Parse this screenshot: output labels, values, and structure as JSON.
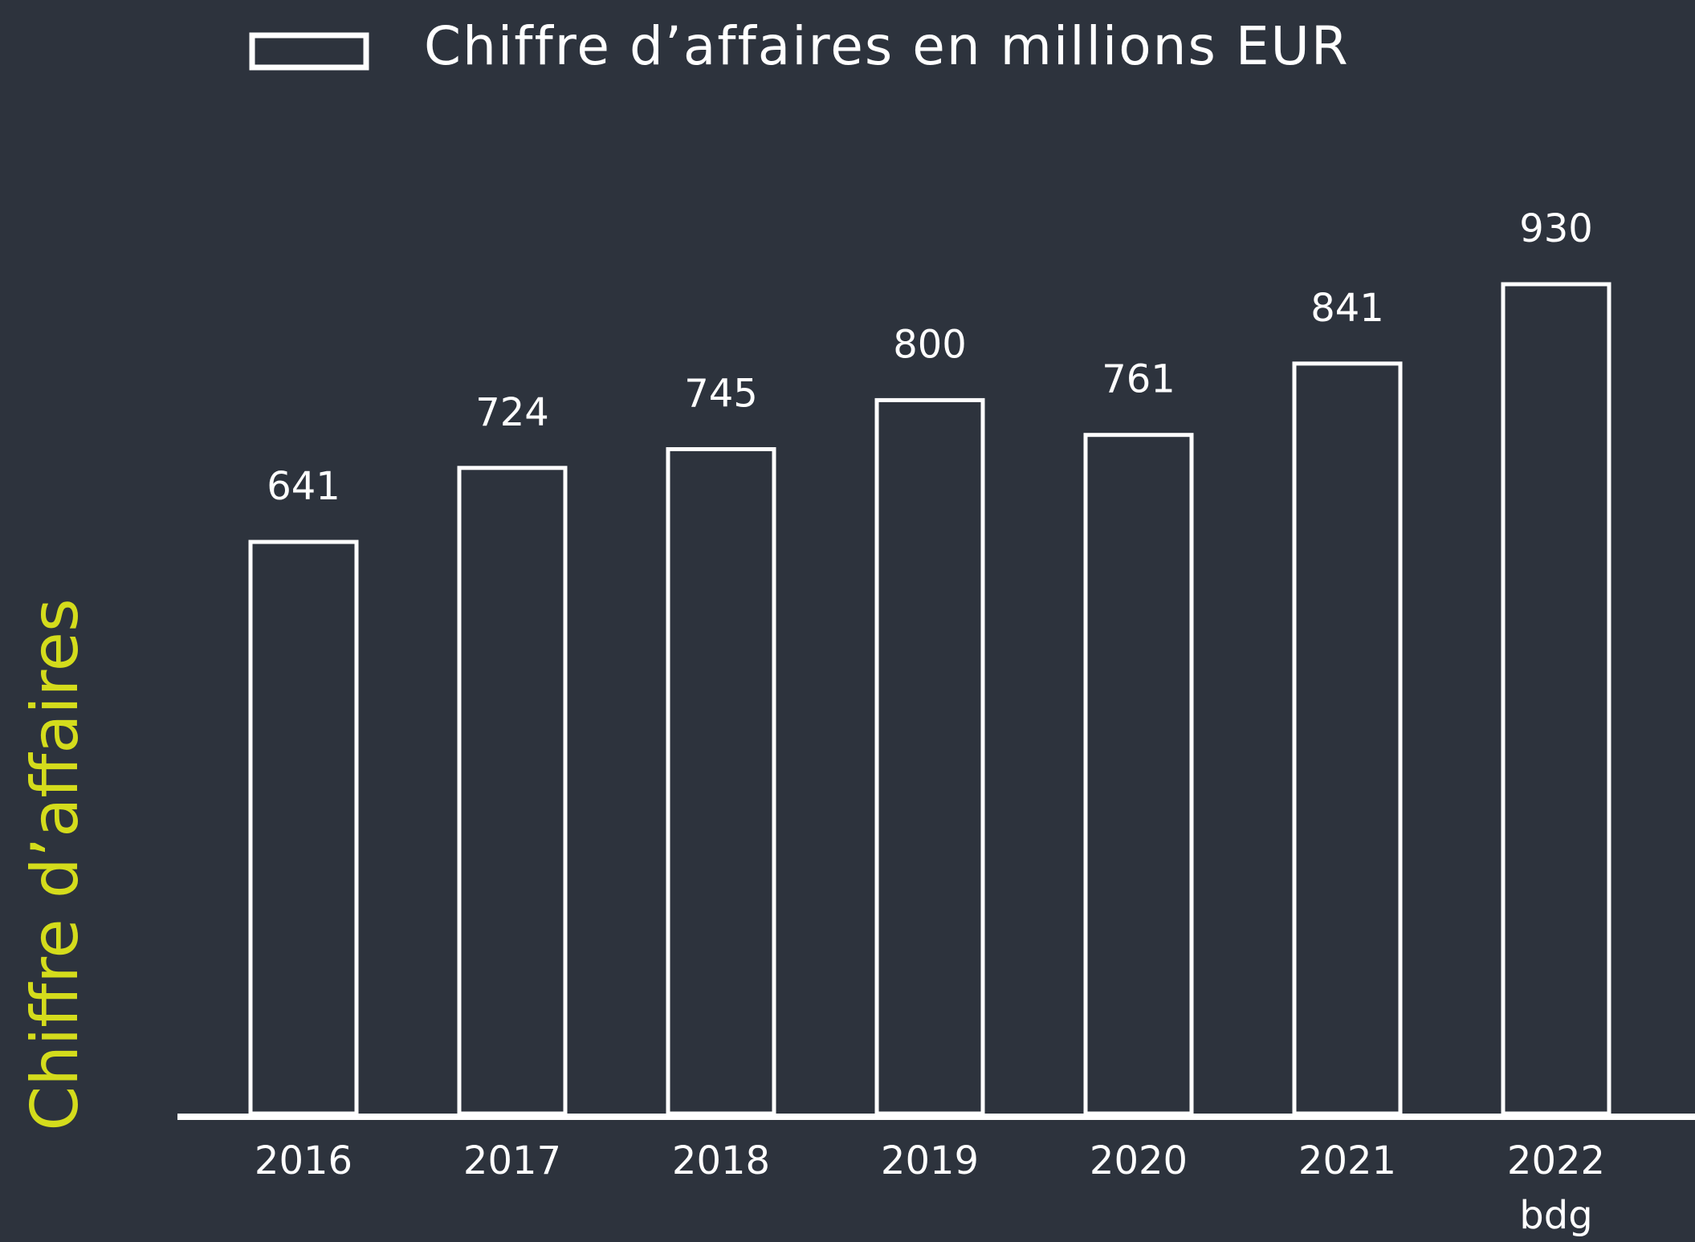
{
  "chart_data": {
    "type": "bar",
    "legend": "Chiffre d’affaires en millions EUR",
    "y_label": "Chiffre d’affaires",
    "categories": [
      "2016",
      "2017",
      "2018",
      "2019",
      "2020",
      "2021",
      "2022\nbdg"
    ],
    "values": [
      641,
      724,
      745,
      800,
      761,
      841,
      930
    ],
    "color": "#ffffff",
    "y_label_color": "#d4dc1c"
  }
}
